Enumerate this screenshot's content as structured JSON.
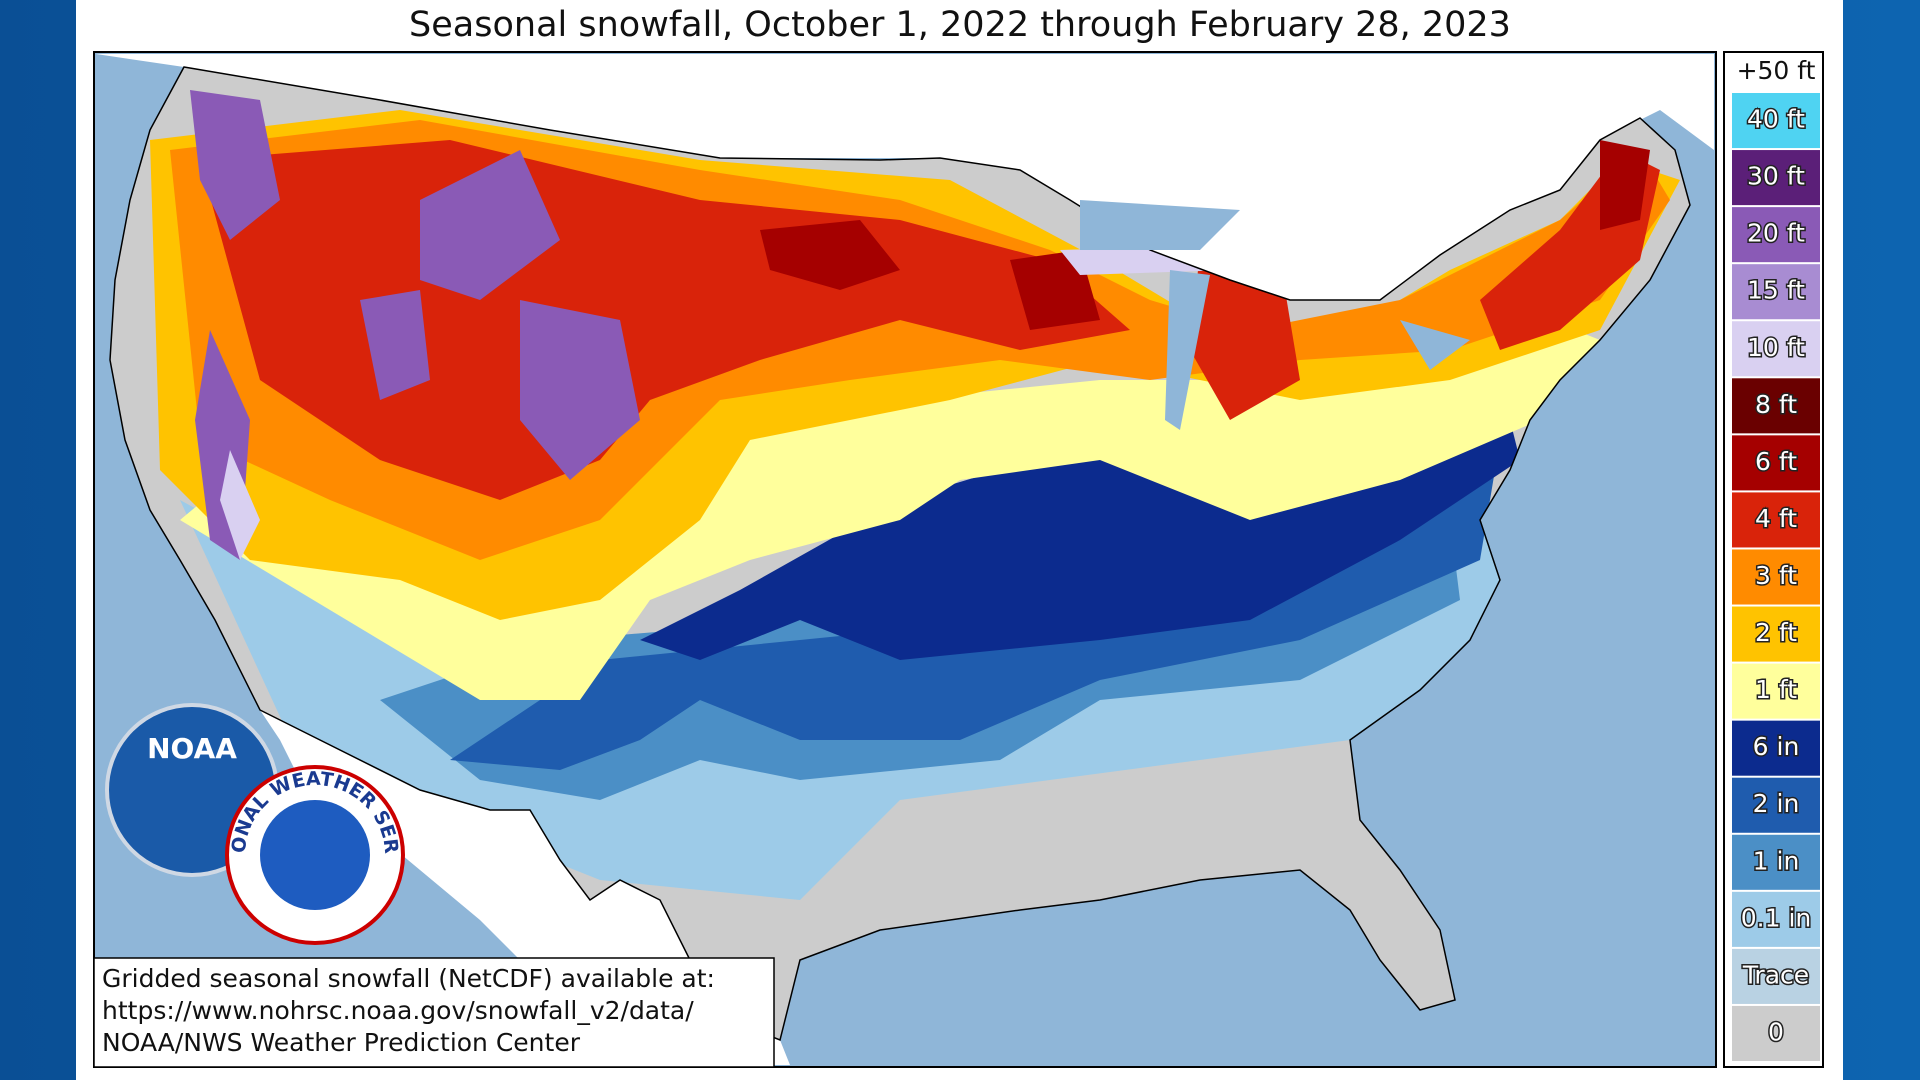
{
  "title": "Seasonal snowfall, October 1, 2022 through February 28, 2023",
  "legend": {
    "top_label": "+50 ft",
    "bins": [
      {
        "label": "40 ft",
        "color": "#4fd3f2"
      },
      {
        "label": "30 ft",
        "color": "#5b1f78"
      },
      {
        "label": "20 ft",
        "color": "#8a5ab6"
      },
      {
        "label": "15 ft",
        "color": "#a88cd2"
      },
      {
        "label": "10 ft",
        "color": "#d9d0f1"
      },
      {
        "label": "8 ft",
        "color": "#6a0000"
      },
      {
        "label": "6 ft",
        "color": "#a50000"
      },
      {
        "label": "4 ft",
        "color": "#d9230a"
      },
      {
        "label": "3 ft",
        "color": "#ff8b00"
      },
      {
        "label": "2 ft",
        "color": "#ffc300"
      },
      {
        "label": "1 ft",
        "color": "#ffff9c"
      },
      {
        "label": "6 in",
        "color": "#0c2b8e"
      },
      {
        "label": "2 in",
        "color": "#1f5cae"
      },
      {
        "label": "1 in",
        "color": "#4b8fc6"
      },
      {
        "label": "0.1 in",
        "color": "#9dcbe8"
      },
      {
        "label": "Trace",
        "color": "#b9d2e3"
      },
      {
        "label": "0",
        "color": "#cccccc"
      }
    ]
  },
  "footnote": [
    "Gridded seasonal snowfall (NetCDF) available at:",
    "https://www.nohrsc.noaa.gov/snowfall_v2/data/",
    "NOAA/NWS Weather Prediction Center"
  ],
  "logos": {
    "noaa": "NOAA",
    "nws": "NATIONAL WEATHER SERVICE"
  }
}
